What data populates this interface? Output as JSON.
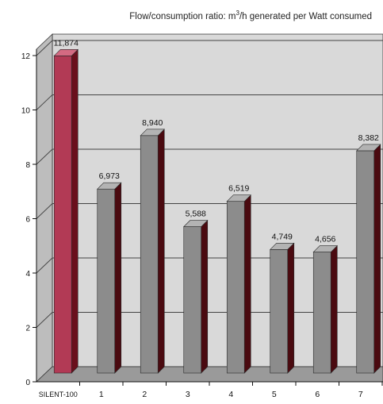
{
  "title": {
    "prefix": "Flow/consumption ratio: m",
    "superscript": "3",
    "suffix": "/h generated per Watt consumed"
  },
  "colors": {
    "highlight": "#b23a55",
    "bar": "#8c8c8c",
    "shade": "#4a0a10",
    "wall": "#d9d9d9",
    "floor": "#9a9a9a"
  },
  "chart_data": {
    "type": "bar",
    "title": "Flow/consumption ratio: m3/h generated per Watt consumed",
    "xlabel": "",
    "ylabel": "",
    "categories": [
      "SILENT-100",
      "1",
      "2",
      "3",
      "4",
      "5",
      "6",
      "7"
    ],
    "values": [
      11.874,
      6.973,
      8.94,
      5.588,
      6.519,
      4.749,
      4.656,
      8.382
    ],
    "value_labels": [
      "11,874",
      "6,973",
      "8,940",
      "5,588",
      "6,519",
      "4,749",
      "4,656",
      "8,382"
    ],
    "yticks": [
      "0",
      "2",
      "4",
      "6",
      "8",
      "10",
      "12"
    ],
    "ylim": [
      0,
      12
    ],
    "grid": true,
    "highlight_index": 0,
    "style": "3d-bar"
  }
}
